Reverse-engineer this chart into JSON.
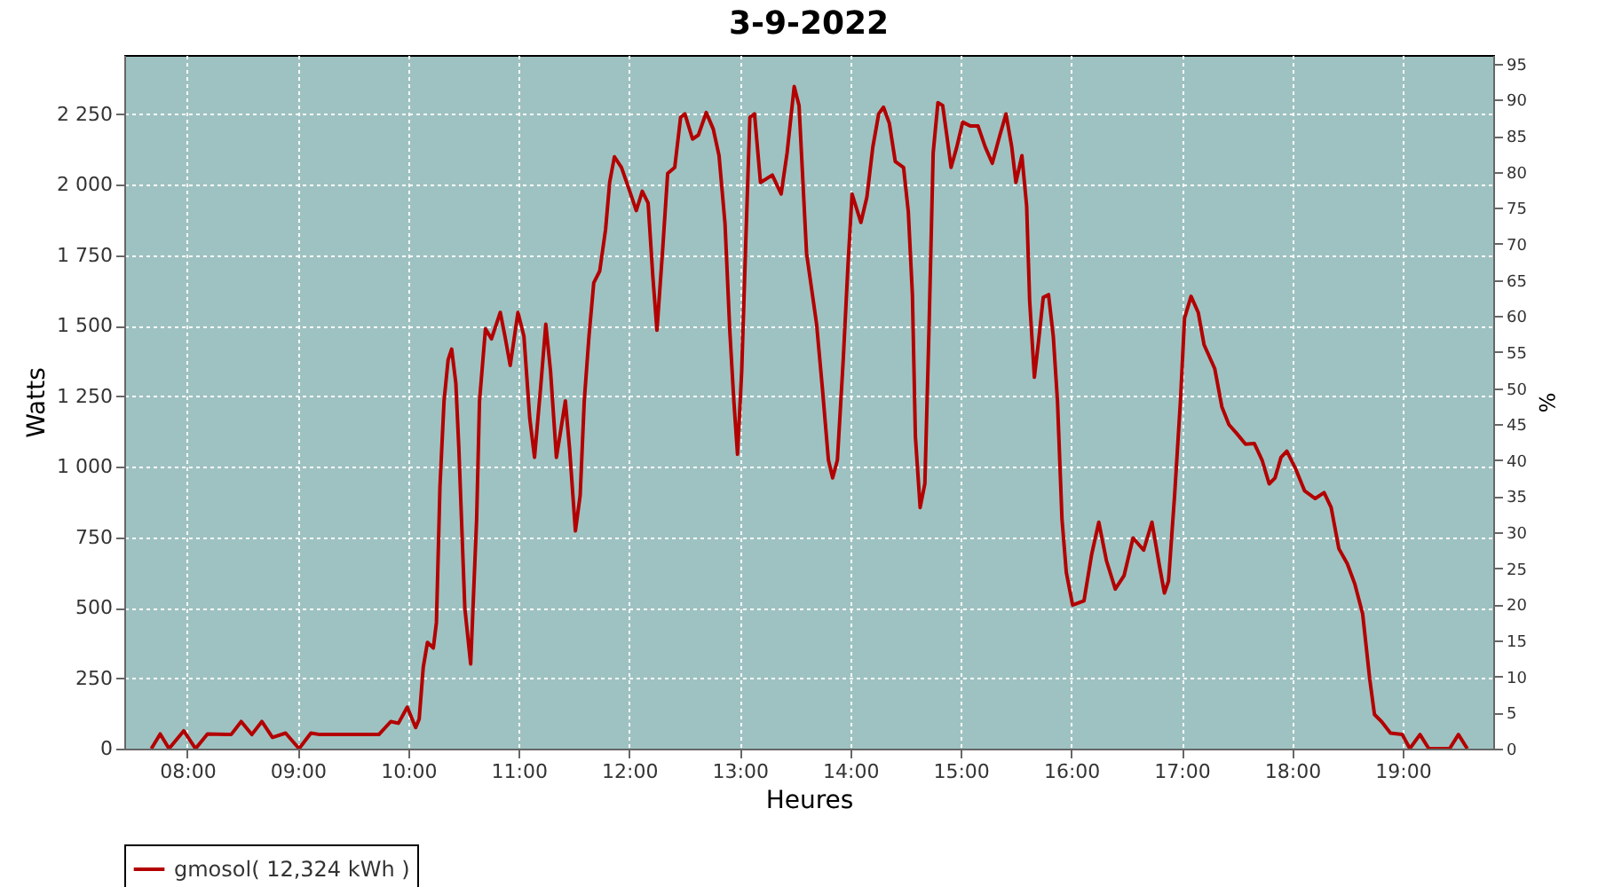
{
  "chart_data": {
    "type": "line",
    "title": "3-9-2022",
    "xlabel": "Heures",
    "ylabel": "Watts",
    "y2label": "%",
    "xlim": [
      7.43,
      19.82
    ],
    "xticks": [
      {
        "value": 8,
        "label": "08:00"
      },
      {
        "value": 9,
        "label": "09:00"
      },
      {
        "value": 10,
        "label": "10:00"
      },
      {
        "value": 11,
        "label": "11:00"
      },
      {
        "value": 12,
        "label": "12:00"
      },
      {
        "value": 13,
        "label": "13:00"
      },
      {
        "value": 14,
        "label": "14:00"
      },
      {
        "value": 15,
        "label": "15:00"
      },
      {
        "value": 16,
        "label": "16:00"
      },
      {
        "value": 17,
        "label": "17:00"
      },
      {
        "value": 18,
        "label": "18:00"
      },
      {
        "value": 19,
        "label": "19:00"
      }
    ],
    "ylim": [
      0,
      2460
    ],
    "yticks": [
      0,
      250,
      500,
      750,
      {
        "value": 1000,
        "label": "1 000"
      },
      {
        "value": 1250,
        "label": "1 250"
      },
      {
        "value": 1500,
        "label": "1 500"
      },
      {
        "value": 1750,
        "label": "1 750"
      },
      {
        "value": 2000,
        "label": "2 000"
      },
      {
        "value": 2250,
        "label": "2 250"
      }
    ],
    "y2lim": [
      0,
      96.2
    ],
    "y2ticks": [
      0,
      5,
      10,
      15,
      20,
      25,
      30,
      35,
      40,
      45,
      50,
      55,
      60,
      65,
      70,
      75,
      80,
      85,
      90,
      95
    ],
    "grid": true,
    "legend": "bottom",
    "marker": "none",
    "line_style": "solid",
    "series": [
      {
        "name": "gmosol( 12,324 kWh )",
        "color": "#b30000",
        "x": [
          7.675,
          7.755,
          7.835,
          7.968,
          8.075,
          8.183,
          8.397,
          8.488,
          8.584,
          8.675,
          8.771,
          8.89,
          9.012,
          9.119,
          9.2,
          9.654,
          9.734,
          9.842,
          9.911,
          9.991,
          10.067,
          10.099,
          10.136,
          10.174,
          10.227,
          10.255,
          10.287,
          10.324,
          10.361,
          10.393,
          10.431,
          10.458,
          10.512,
          10.565,
          10.619,
          10.645,
          10.699,
          10.753,
          10.833,
          10.875,
          10.923,
          10.993,
          11.047,
          11.1,
          11.143,
          11.197,
          11.245,
          11.288,
          11.341,
          11.38,
          11.422,
          11.46,
          11.513,
          11.556,
          11.593,
          11.636,
          11.679,
          11.733,
          11.786,
          11.823,
          11.866,
          11.93,
          11.995,
          12.064,
          12.118,
          12.171,
          12.214,
          12.251,
          12.304,
          12.348,
          12.412,
          12.465,
          12.504,
          12.573,
          12.626,
          12.697,
          12.761,
          12.813,
          12.867,
          12.91,
          12.947,
          12.98,
          13.018,
          13.055,
          13.092,
          13.134,
          13.188,
          13.295,
          13.375,
          13.429,
          13.493,
          13.537,
          13.605,
          13.696,
          13.749,
          13.803,
          13.841,
          13.884,
          13.937,
          13.98,
          14.017,
          14.097,
          14.151,
          14.205,
          14.258,
          14.301,
          14.354,
          14.408,
          14.483,
          14.526,
          14.563,
          14.59,
          14.633,
          14.676,
          14.713,
          14.751,
          14.794,
          14.837,
          14.874,
          14.913,
          14.965,
          15.018,
          15.089,
          15.157,
          15.222,
          15.286,
          15.355,
          15.41,
          15.462,
          15.5,
          15.554,
          15.597,
          15.624,
          15.667,
          15.704,
          15.747,
          15.795,
          15.838,
          15.876,
          15.917,
          15.956,
          16.013,
          16.116,
          16.185,
          16.25,
          16.319,
          16.399,
          16.479,
          16.56,
          16.656,
          16.731,
          16.8,
          16.844,
          16.881,
          16.936,
          16.989,
          17.026,
          17.085,
          17.15,
          17.203,
          17.299,
          17.364,
          17.428,
          17.498,
          17.578,
          17.658,
          17.728,
          17.792,
          17.845,
          17.899,
          17.952,
          18.032,
          18.113,
          18.209,
          18.289,
          18.353,
          18.423,
          18.499,
          18.568,
          18.638,
          18.702,
          18.745,
          18.809,
          18.89,
          18.997,
          19.065,
          19.157,
          19.237,
          19.425,
          19.505,
          19.585
        ],
        "values": [
          0,
          52,
          0,
          63,
          0,
          52,
          50,
          96,
          50,
          96,
          40,
          55,
          0,
          55,
          50,
          50,
          50,
          96,
          90,
          147,
          75,
          105,
          289,
          377,
          357,
          447,
          929,
          1233,
          1379,
          1417,
          1295,
          1065,
          499,
          300,
          813,
          1233,
          1489,
          1453,
          1547,
          1463,
          1359,
          1547,
          1463,
          1170,
          1033,
          1275,
          1505,
          1338,
          1033,
          1128,
          1233,
          1065,
          772,
          898,
          1233,
          1463,
          1652,
          1694,
          1841,
          2008,
          2099,
          2061,
          1988,
          1908,
          1977,
          1935,
          1673,
          1484,
          1778,
          2040,
          2061,
          2239,
          2251,
          2162,
          2176,
          2256,
          2197,
          2103,
          1862,
          1484,
          1233,
          1044,
          1338,
          1799,
          2239,
          2251,
          2008,
          2034,
          1967,
          2113,
          2348,
          2281,
          1757,
          1505,
          1275,
          1023,
          960,
          1023,
          1379,
          1715,
          1967,
          1866,
          1956,
          2134,
          2251,
          2275,
          2218,
          2082,
          2061,
          1904,
          1610,
          1107,
          855,
          940,
          1484,
          2113,
          2291,
          2281,
          2176,
          2061,
          2134,
          2222,
          2208,
          2208,
          2134,
          2076,
          2176,
          2251,
          2134,
          2008,
          2103,
          1925,
          1590,
          1317,
          1442,
          1600,
          1610,
          1463,
          1233,
          813,
          625,
          509,
          524,
          688,
          803,
          667,
          566,
          614,
          747,
          704,
          803,
          646,
          552,
          594,
          898,
          1233,
          1527,
          1604,
          1547,
          1432,
          1348,
          1212,
          1149,
          1118,
          1080,
          1082,
          1023,
          939,
          960,
          1033,
          1055,
          992,
          914,
          887,
          908,
          855,
          709,
          656,
          583,
          478,
          247,
          121,
          96,
          55,
          50,
          0,
          50,
          0,
          0,
          50,
          0
        ]
      }
    ]
  }
}
